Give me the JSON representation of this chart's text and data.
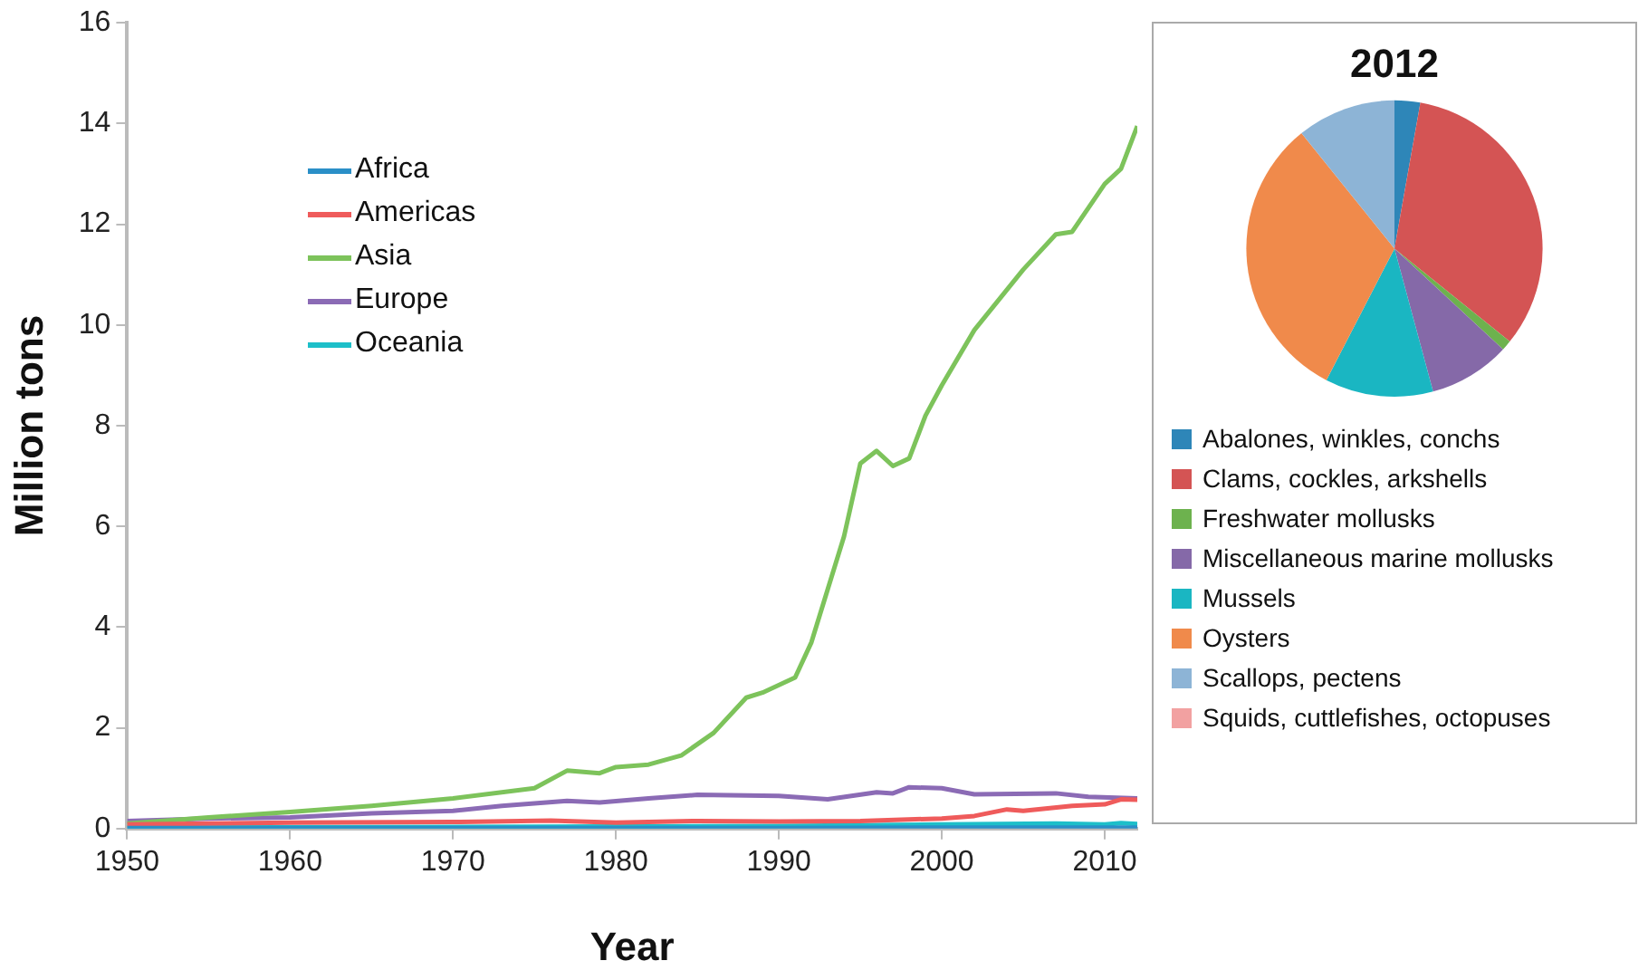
{
  "chart_data": [
    {
      "type": "line",
      "xlabel": "Year",
      "ylabel": "Million tons",
      "xlim": [
        1950,
        2012
      ],
      "xticks": [
        1950,
        1960,
        1970,
        1980,
        1990,
        2000,
        2010
      ],
      "ylim": [
        0,
        16
      ],
      "yticks": [
        0,
        2,
        4,
        6,
        8,
        10,
        12,
        14,
        16
      ],
      "grid": false,
      "legend": "top left",
      "series": [
        {
          "name": "Africa",
          "color": "#2a8fc7",
          "x": [
            1950,
            1970,
            1990,
            2000,
            2012
          ],
          "values": [
            0.01,
            0.01,
            0.01,
            0.02,
            0.02
          ]
        },
        {
          "name": "Americas",
          "color": "#ef5b5b",
          "x": [
            1950,
            1960,
            1970,
            1976,
            1980,
            1985,
            1990,
            1995,
            2000,
            2002,
            2004,
            2005,
            2008,
            2010,
            2011,
            2012
          ],
          "values": [
            0.08,
            0.12,
            0.13,
            0.16,
            0.12,
            0.15,
            0.14,
            0.15,
            0.2,
            0.25,
            0.38,
            0.35,
            0.45,
            0.48,
            0.58,
            0.57
          ]
        },
        {
          "name": "Asia",
          "color": "#7dc35b",
          "x": [
            1950,
            1955,
            1960,
            1965,
            1970,
            1975,
            1977,
            1979,
            1980,
            1982,
            1984,
            1986,
            1988,
            1989,
            1991,
            1992,
            1994,
            1995,
            1996,
            1997,
            1998,
            1999,
            2000,
            2002,
            2005,
            2007,
            2008,
            2010,
            2011,
            2012
          ],
          "values": [
            0.1,
            0.22,
            0.33,
            0.45,
            0.6,
            0.8,
            1.15,
            1.1,
            1.22,
            1.27,
            1.45,
            1.9,
            2.6,
            2.7,
            3.0,
            3.7,
            5.8,
            7.25,
            7.5,
            7.2,
            7.35,
            8.2,
            8.8,
            9.9,
            11.1,
            11.8,
            11.85,
            12.8,
            13.1,
            13.95
          ]
        },
        {
          "name": "Europe",
          "color": "#8b6bb5",
          "x": [
            1950,
            1955,
            1960,
            1965,
            1970,
            1973,
            1977,
            1979,
            1982,
            1985,
            1990,
            1993,
            1996,
            1997,
            1998,
            2000,
            2002,
            2007,
            2009,
            2012
          ],
          "values": [
            0.15,
            0.2,
            0.22,
            0.3,
            0.35,
            0.45,
            0.55,
            0.52,
            0.6,
            0.67,
            0.65,
            0.58,
            0.72,
            0.7,
            0.82,
            0.8,
            0.68,
            0.7,
            0.63,
            0.6
          ]
        },
        {
          "name": "Oceania",
          "color": "#1dbfc9",
          "x": [
            1950,
            1980,
            1990,
            2000,
            2007,
            2010,
            2011,
            2012
          ],
          "values": [
            0.02,
            0.04,
            0.05,
            0.08,
            0.1,
            0.08,
            0.11,
            0.09
          ]
        }
      ]
    },
    {
      "type": "pie",
      "title": "2012",
      "legend": "bottom",
      "categories": [
        "Abalones, winkles, conchs",
        "Clams, cockles, arkshells",
        "Freshwater mollusks",
        "Miscellaneous marine mollusks",
        "Mussels",
        "Oysters",
        "Scallops, pectens",
        "Squids, cuttlefishes, octopuses"
      ],
      "values": [
        2.8,
        33,
        1.1,
        8.9,
        11.8,
        31.6,
        10.8,
        0
      ],
      "colors": [
        "#2e86b8",
        "#d45454",
        "#6db24e",
        "#8569a8",
        "#1ab6c2",
        "#f08a4b",
        "#8db4d6",
        "#f2a1a1"
      ]
    }
  ]
}
